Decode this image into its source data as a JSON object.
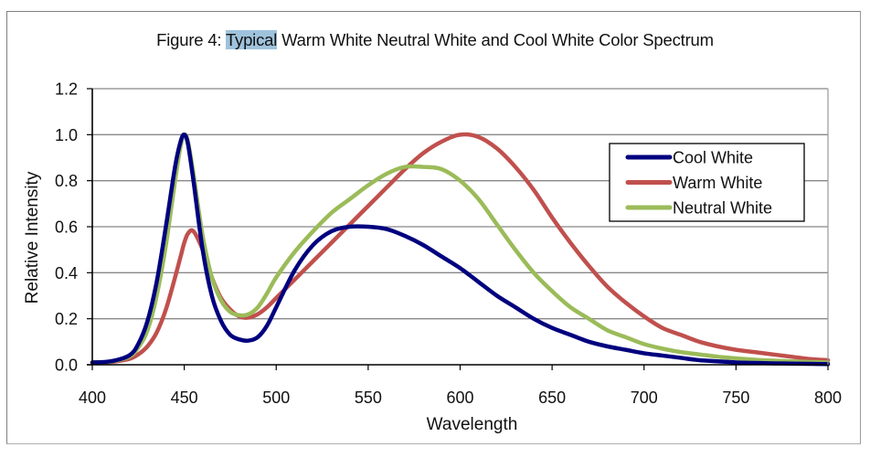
{
  "chart_data": {
    "type": "line",
    "title_prefix": "Figure 4:  ",
    "title_highlight": "Typical",
    "title_suffix": " Warm White Neutral White and Cool White Color Spectrum",
    "title": "Figure 4:  Typical Warm White Neutral White and Cool White Color Spectrum",
    "xlabel": "Wavelength",
    "ylabel": "Relative Intensity",
    "xlim": [
      400,
      800
    ],
    "ylim": [
      0,
      1.2
    ],
    "x_ticks": [
      "400",
      "450",
      "500",
      "550",
      "600",
      "650",
      "700",
      "750",
      "800"
    ],
    "x_tick_values": [
      400,
      450,
      500,
      550,
      600,
      650,
      700,
      750,
      800
    ],
    "y_ticks": [
      "0.0",
      "0.2",
      "0.4",
      "0.6",
      "0.8",
      "1.0",
      "1.2"
    ],
    "y_tick_values": [
      0,
      0.2,
      0.4,
      0.6,
      0.8,
      1.0,
      1.2
    ],
    "grid": "horizontal",
    "legend_position": "top-right",
    "x": [
      400,
      410,
      420,
      425,
      430,
      435,
      440,
      445,
      448,
      450,
      452,
      455,
      460,
      465,
      470,
      475,
      480,
      485,
      490,
      495,
      500,
      510,
      520,
      530,
      540,
      550,
      560,
      570,
      580,
      590,
      600,
      610,
      620,
      630,
      640,
      650,
      660,
      670,
      680,
      690,
      700,
      710,
      720,
      730,
      740,
      750,
      760,
      770,
      780,
      790,
      800
    ],
    "series": [
      {
        "name": "Cool White",
        "color": "#00007f",
        "values": [
          0.01,
          0.015,
          0.04,
          0.09,
          0.19,
          0.36,
          0.6,
          0.86,
          0.97,
          1.0,
          0.96,
          0.8,
          0.5,
          0.3,
          0.19,
          0.13,
          0.11,
          0.105,
          0.12,
          0.17,
          0.25,
          0.41,
          0.52,
          0.58,
          0.6,
          0.6,
          0.59,
          0.56,
          0.52,
          0.47,
          0.42,
          0.36,
          0.3,
          0.25,
          0.2,
          0.16,
          0.13,
          0.1,
          0.08,
          0.065,
          0.05,
          0.04,
          0.03,
          0.02,
          0.015,
          0.01,
          0.008,
          0.006,
          0.005,
          0.004,
          0.003
        ]
      },
      {
        "name": "Warm White",
        "color": "#c0504d",
        "values": [
          0.01,
          0.012,
          0.025,
          0.045,
          0.08,
          0.14,
          0.24,
          0.38,
          0.47,
          0.53,
          0.57,
          0.58,
          0.5,
          0.38,
          0.29,
          0.24,
          0.21,
          0.205,
          0.22,
          0.25,
          0.29,
          0.37,
          0.45,
          0.53,
          0.61,
          0.69,
          0.77,
          0.85,
          0.92,
          0.97,
          1.0,
          0.99,
          0.94,
          0.86,
          0.76,
          0.64,
          0.53,
          0.43,
          0.34,
          0.27,
          0.21,
          0.16,
          0.13,
          0.1,
          0.08,
          0.065,
          0.055,
          0.045,
          0.035,
          0.025,
          0.02
        ]
      },
      {
        "name": "Neutral White",
        "color": "#9bbb59",
        "values": [
          0.01,
          0.014,
          0.035,
          0.075,
          0.15,
          0.3,
          0.52,
          0.8,
          0.95,
          1.0,
          0.97,
          0.83,
          0.56,
          0.38,
          0.28,
          0.23,
          0.215,
          0.22,
          0.25,
          0.31,
          0.38,
          0.49,
          0.58,
          0.66,
          0.72,
          0.78,
          0.83,
          0.86,
          0.86,
          0.85,
          0.8,
          0.72,
          0.61,
          0.5,
          0.4,
          0.32,
          0.25,
          0.2,
          0.15,
          0.12,
          0.09,
          0.07,
          0.055,
          0.045,
          0.035,
          0.028,
          0.022,
          0.018,
          0.015,
          0.012,
          0.01
        ]
      }
    ],
    "gridline_color": "#888888"
  }
}
